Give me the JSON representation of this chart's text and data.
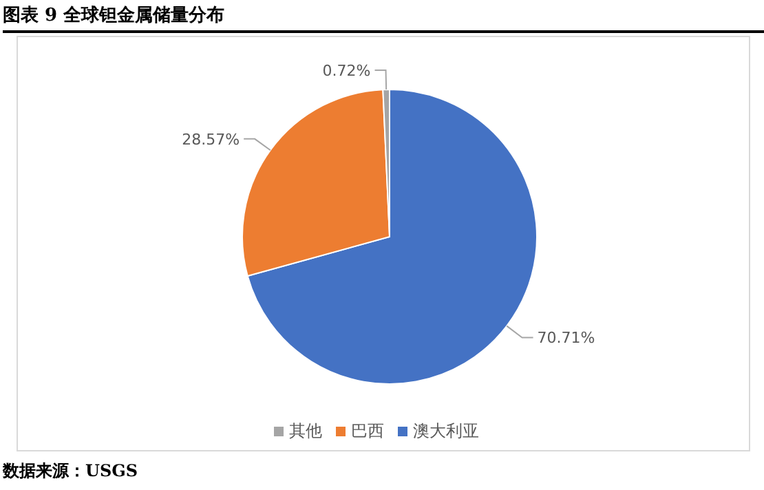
{
  "chart_data": {
    "type": "pie",
    "title": "图表 9 全球钽金属储量分布",
    "categories": [
      "澳大利亚",
      "巴西",
      "其他"
    ],
    "values": [
      70.71,
      28.57,
      0.72
    ],
    "value_labels": [
      "70.71%",
      "28.57%",
      "0.72%"
    ],
    "colors": [
      "#4472c4",
      "#ed7d31",
      "#a5a5a5"
    ],
    "legend": "bottom",
    "annotations": [
      "数据来源：USGS"
    ]
  }
}
